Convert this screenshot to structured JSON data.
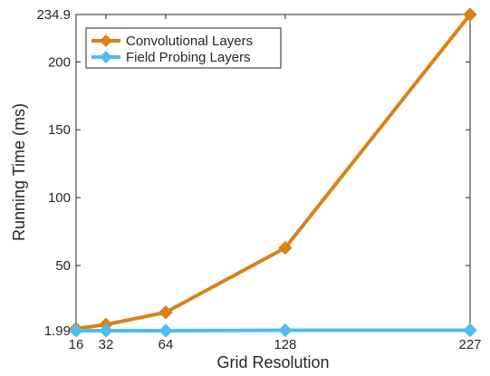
{
  "chart_data": {
    "type": "line",
    "xlabel": "Grid Resolution",
    "ylabel": "Running Time (ms)",
    "x": [
      16,
      32,
      64,
      128,
      227
    ],
    "xticks": [
      "16",
      "32",
      "64",
      "128",
      "227"
    ],
    "yticks": [
      "1.99",
      "50",
      "100",
      "150",
      "200",
      "234.9"
    ],
    "ylim": [
      1.99,
      234.9
    ],
    "xlim": [
      16,
      227
    ],
    "grid": false,
    "legend_position": "top-left",
    "series": [
      {
        "name": "Convolutional Layers",
        "color": "#d9821a",
        "marker": "diamond",
        "values": [
          3.5,
          6.5,
          15.5,
          63,
          234.9
        ]
      },
      {
        "name": "Field Probing Layers",
        "color": "#4dbeee",
        "marker": "diamond",
        "values": [
          1.99,
          1.99,
          1.99,
          2.3,
          2.3
        ]
      }
    ]
  }
}
